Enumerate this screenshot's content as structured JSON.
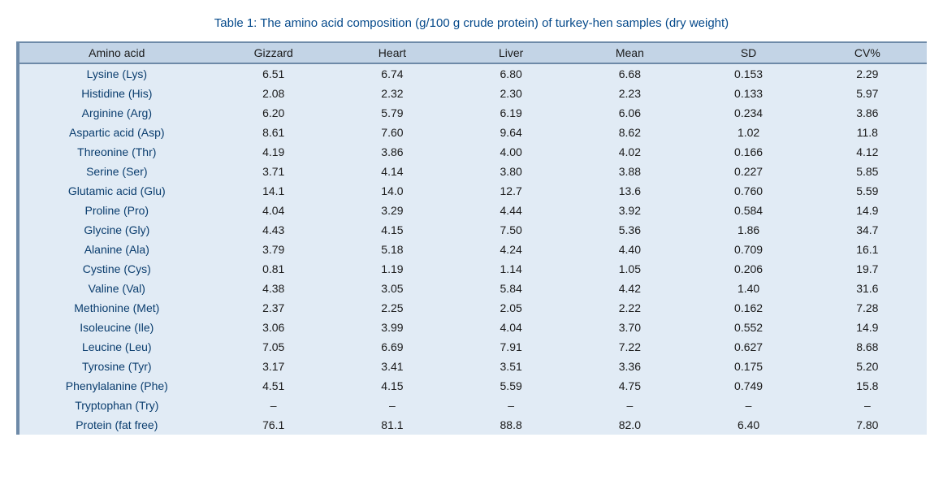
{
  "caption": "Table 1: The amino acid composition (g/100 g crude protein) of turkey-hen samples (dry weight)",
  "table": {
    "columns": [
      "Amino acid",
      "Gizzard",
      "Heart",
      "Liver",
      "Mean",
      "SD",
      "CV%"
    ],
    "rows": [
      [
        "Lysine (Lys)",
        "6.51",
        "6.74",
        "6.80",
        "6.68",
        "0.153",
        "2.29"
      ],
      [
        "Histidine (His)",
        "2.08",
        "2.32",
        "2.30",
        "2.23",
        "0.133",
        "5.97"
      ],
      [
        "Arginine (Arg)",
        "6.20",
        "5.79",
        "6.19",
        "6.06",
        "0.234",
        "3.86"
      ],
      [
        "Aspartic acid (Asp)",
        "8.61",
        "7.60",
        "9.64",
        "8.62",
        "1.02",
        "11.8"
      ],
      [
        "Threonine (Thr)",
        "4.19",
        "3.86",
        "4.00",
        "4.02",
        "0.166",
        "4.12"
      ],
      [
        "Serine (Ser)",
        "3.71",
        "4.14",
        "3.80",
        "3.88",
        "0.227",
        "5.85"
      ],
      [
        "Glutamic acid (Glu)",
        "14.1",
        "14.0",
        "12.7",
        "13.6",
        "0.760",
        "5.59"
      ],
      [
        "Proline (Pro)",
        "4.04",
        "3.29",
        "4.44",
        "3.92",
        "0.584",
        "14.9"
      ],
      [
        "Glycine (Gly)",
        "4.43",
        "4.15",
        "7.50",
        "5.36",
        "1.86",
        "34.7"
      ],
      [
        "Alanine (Ala)",
        "3.79",
        "5.18",
        "4.24",
        "4.40",
        "0.709",
        "16.1"
      ],
      [
        "Cystine (Cys)",
        "0.81",
        "1.19",
        "1.14",
        "1.05",
        "0.206",
        "19.7"
      ],
      [
        "Valine (Val)",
        "4.38",
        "3.05",
        "5.84",
        "4.42",
        "1.40",
        "31.6"
      ],
      [
        "Methionine (Met)",
        "2.37",
        "2.25",
        "2.05",
        "2.22",
        "0.162",
        "7.28"
      ],
      [
        "Isoleucine (Ile)",
        "3.06",
        "3.99",
        "4.04",
        "3.70",
        "0.552",
        "14.9"
      ],
      [
        "Leucine (Leu)",
        "7.05",
        "6.69",
        "7.91",
        "7.22",
        "0.627",
        "8.68"
      ],
      [
        "Tyrosine (Tyr)",
        "3.17",
        "3.41",
        "3.51",
        "3.36",
        "0.175",
        "5.20"
      ],
      [
        "Phenylalanine (Phe)",
        "4.51",
        "4.15",
        "5.59",
        "4.75",
        "0.749",
        "15.8"
      ],
      [
        "Tryptophan (Try)",
        "–",
        "–",
        "–",
        "–",
        "–",
        "–"
      ],
      [
        "Protein (fat free)",
        "76.1",
        "81.1",
        "88.8",
        "82.0",
        "6.40",
        "7.80"
      ]
    ],
    "colors": {
      "header_bg": "#c3d4e6",
      "row_bg": "#e1ebf5",
      "border": "#6e8aa8",
      "caption": "#064a8b",
      "rowlabel": "#0a3d6e",
      "text": "#1a1a1a"
    },
    "font_size_body": 14,
    "font_size_caption": 15,
    "col_widths_pct": [
      22,
      13,
      13,
      13,
      13,
      13,
      13
    ]
  }
}
